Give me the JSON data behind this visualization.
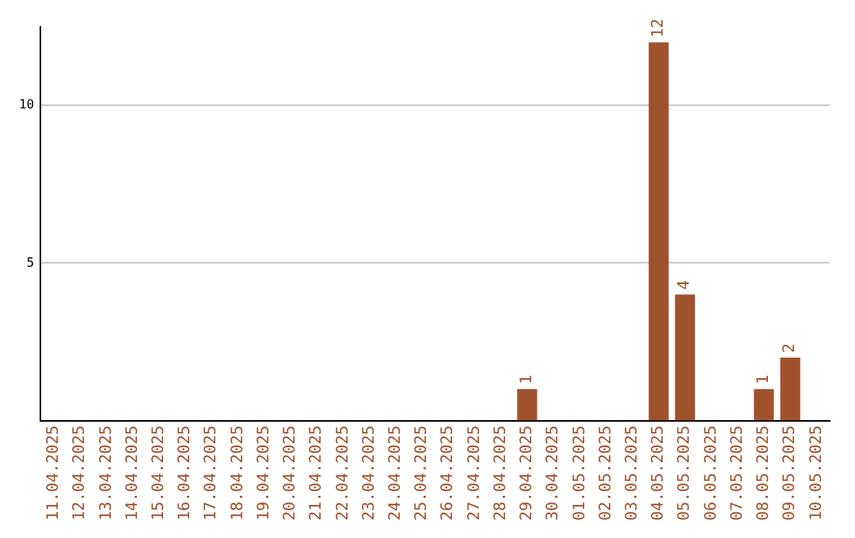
{
  "chart_data": {
    "type": "bar",
    "categories": [
      "11.04.2025",
      "12.04.2025",
      "13.04.2025",
      "14.04.2025",
      "15.04.2025",
      "16.04.2025",
      "17.04.2025",
      "18.04.2025",
      "19.04.2025",
      "20.04.2025",
      "21.04.2025",
      "22.04.2025",
      "23.04.2025",
      "24.04.2025",
      "25.04.2025",
      "26.04.2025",
      "27.04.2025",
      "28.04.2025",
      "29.04.2025",
      "30.04.2025",
      "01.05.2025",
      "02.05.2025",
      "03.05.2025",
      "04.05.2025",
      "05.05.2025",
      "06.05.2025",
      "07.05.2025",
      "08.05.2025",
      "09.05.2025",
      "10.05.2025"
    ],
    "values": [
      0,
      0,
      0,
      0,
      0,
      0,
      0,
      0,
      0,
      0,
      0,
      0,
      0,
      0,
      0,
      0,
      0,
      0,
      1,
      0,
      0,
      0,
      0,
      12,
      4,
      0,
      0,
      1,
      2,
      0
    ],
    "value_labels": [
      null,
      null,
      null,
      null,
      null,
      null,
      null,
      null,
      null,
      null,
      null,
      null,
      null,
      null,
      null,
      null,
      null,
      null,
      "1",
      null,
      null,
      null,
      null,
      "12",
      "4",
      null,
      null,
      "1",
      "2",
      null
    ],
    "color": "#a0522d",
    "ylim": [
      0,
      12.5
    ],
    "yticks": [
      5,
      10
    ],
    "grid": "y",
    "legend": false
  }
}
